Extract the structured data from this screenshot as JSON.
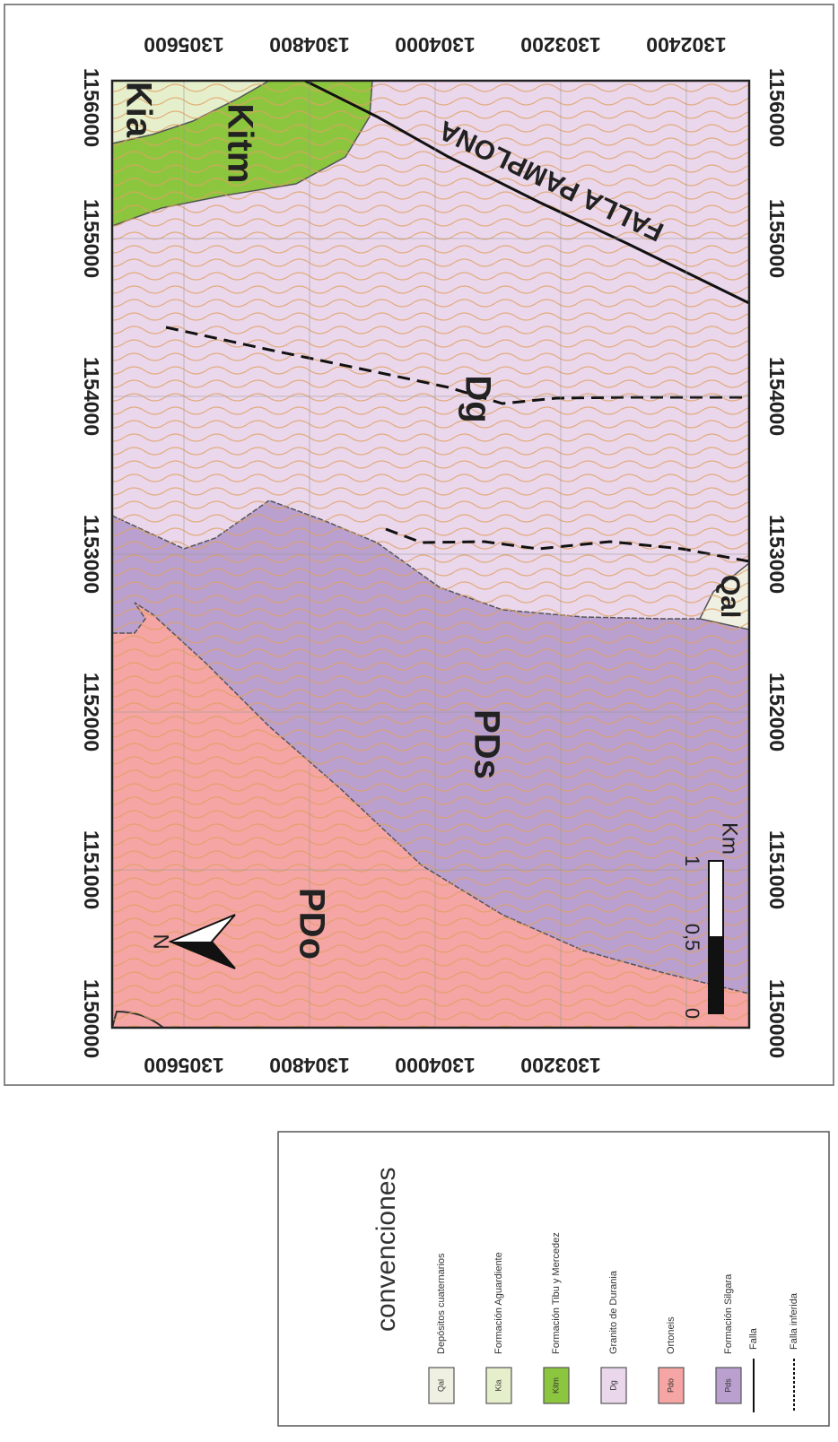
{
  "map": {
    "easting_ticks": [
      1156000,
      1155000,
      1154000,
      1153000,
      1152000,
      1151000,
      1150000
    ],
    "northing_ticks_top": [
      1305600,
      1304800,
      1304000,
      1303200,
      1302400
    ],
    "northing_ticks_bottom": [
      1305600,
      1304800,
      1304000,
      1303200
    ],
    "unit_labels": [
      "Kia",
      "Kitm",
      "Dg",
      "PDs",
      "PDo",
      "Qal"
    ],
    "fault_label": "FALLA PAMPLONA",
    "north": "N",
    "scale": {
      "labels": [
        "0",
        "0,5",
        "1"
      ],
      "unit": "Km"
    }
  },
  "legend": {
    "title": "convenciones",
    "items": [
      {
        "code": "Qal",
        "label": "Depósitos cuaternarios"
      },
      {
        "code": "Kia",
        "label": "Formación Aguardiente"
      },
      {
        "code": "Kitm",
        "label": "Formación Tibu y Mercedez"
      },
      {
        "code": "Dg",
        "label": "Granito de Durania"
      },
      {
        "code": "Pdo",
        "label": "Ortoneis"
      },
      {
        "code": "Pds",
        "label": "Formación Silgara"
      }
    ],
    "lines": [
      {
        "label": "Falla"
      },
      {
        "label": "Falla inferida"
      }
    ]
  }
}
